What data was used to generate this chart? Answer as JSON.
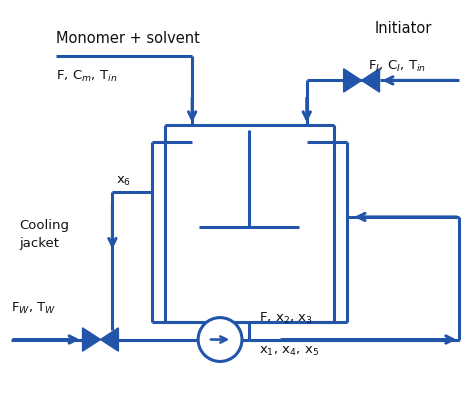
{
  "bg_color": "#ffffff",
  "line_color": "#2255aa",
  "text_color": "#111111",
  "lw": 2.2,
  "fig_w": 4.74,
  "fig_h": 4.03,
  "dpi": 100,
  "labels": {
    "monomer": "Monomer + solvent",
    "monomer_sub": "F, C$_m$, T$_{in}$",
    "initiator": "Initiator",
    "initiator_sub": "F$_I$, C$_I$, T$_{in}$",
    "x6": "x$_6$",
    "cooling": "Cooling\njacket",
    "fw": "F$_W$, T$_W$",
    "fx2x3": "F, x$_2$, x$_3$",
    "x1x4x5": "x$_1$, x$_4$, x$_5$"
  }
}
